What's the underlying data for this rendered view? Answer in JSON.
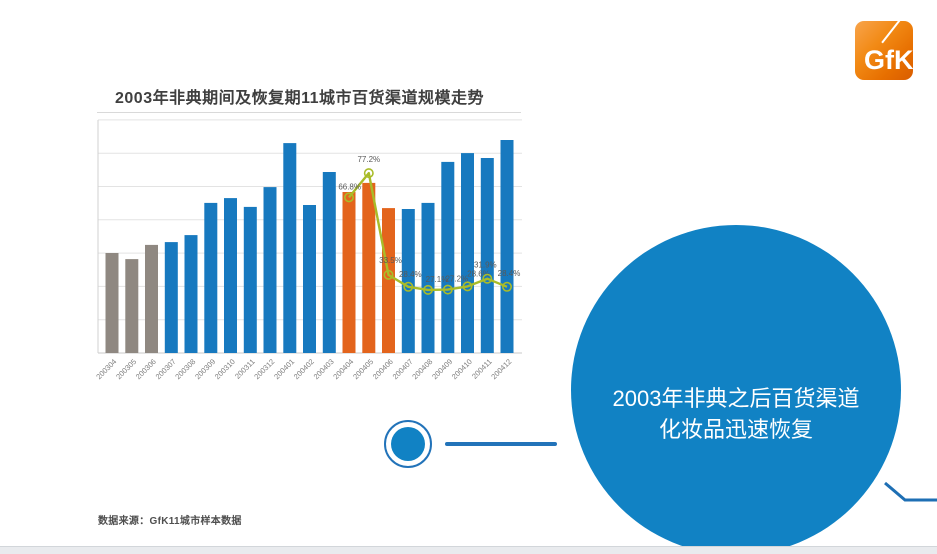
{
  "logo": {
    "text": "GfK"
  },
  "chart": {
    "title": "2003年非典期间及恢复期11城市百货渠道规模走势"
  },
  "chart_data": {
    "type": "bar",
    "title": "2003年非典期间及恢复期11城市百货渠道规模走势",
    "categories": [
      "200304",
      "200305",
      "200306",
      "200307",
      "200308",
      "200309",
      "200310",
      "200311",
      "200312",
      "200401",
      "200402",
      "200403",
      "200404",
      "200405",
      "200406",
      "200407",
      "200408",
      "200409",
      "200410",
      "200411",
      "200412"
    ],
    "bar_series": {
      "values": [
        42.9,
        40.3,
        46.4,
        47.6,
        50.6,
        64.4,
        66.5,
        62.7,
        71.2,
        90.1,
        63.5,
        77.7,
        69.1,
        73.0,
        62.2,
        61.8,
        64.4,
        82.0,
        85.8,
        83.7,
        91.4
      ],
      "color_groups": [
        "gray",
        "gray",
        "gray",
        "blue",
        "blue",
        "blue",
        "blue",
        "blue",
        "blue",
        "blue",
        "blue",
        "blue",
        "orange",
        "orange",
        "orange",
        "blue",
        "blue",
        "blue",
        "blue",
        "blue",
        "blue"
      ]
    },
    "line_series": {
      "type": "line",
      "start_category": "200404",
      "values_pct": [
        66.8,
        77.2,
        33.5,
        28.4,
        27.1,
        27.2,
        28.6,
        31.9,
        28.4
      ],
      "labels": [
        "66.8%",
        "77.2%",
        "33.5%",
        "28.4%",
        "27.1%",
        "27.2%",
        "28.6%",
        "31.9%",
        "28.4%"
      ]
    },
    "colors": {
      "blue": "#1779bf",
      "orange": "#e3641c",
      "gray": "#8f8881",
      "line": "#a9bc29"
    },
    "axes": {
      "y_tick_labels_visible": false,
      "estimated_ylim": [
        0,
        100
      ],
      "gridlines": 8,
      "x_label_rotation": -45,
      "grid": true,
      "legend": "none"
    }
  },
  "callout": {
    "line1": "2003年非典之后百货渠道",
    "line2": "化妆品迅速恢复"
  },
  "footer": {
    "source": "数据来源：GfK11城市样本数据"
  }
}
